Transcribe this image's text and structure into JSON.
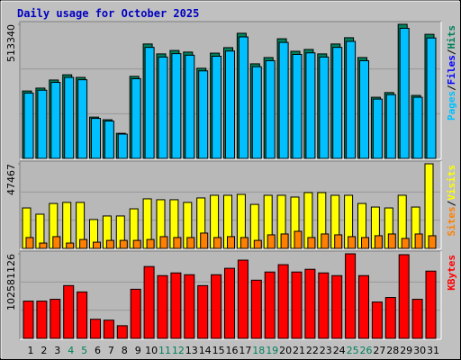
{
  "chart_data": [
    {
      "type": "bar",
      "title": "Daily usage for October 2025",
      "ylim": [
        0,
        513340
      ],
      "yticks": [
        513340
      ],
      "legend": [
        {
          "name": "Pages",
          "color": "#00c0ff"
        },
        {
          "name": "Files",
          "color": "#0000ff"
        },
        {
          "name": "Hits",
          "color": "#00805c"
        }
      ],
      "legend_separator": "/",
      "series": [
        {
          "color": "#00805c",
          "values": [
            258000,
            269000,
            300000,
            320000,
            310000,
            158000,
            148000,
            96000,
            314000,
            438000,
            400000,
            413000,
            407000,
            345000,
            403000,
            424000,
            479000,
            362000,
            386000,
            458000,
            410000,
            417000,
            400000,
            438000,
            462000,
            386000,
            234000,
            252000,
            513340,
            241000,
            475000
          ]
        },
        {
          "color": "#00c0ff",
          "values": [
            250000,
            261000,
            291000,
            310000,
            301000,
            153000,
            143000,
            93000,
            305000,
            425000,
            388000,
            401000,
            395000,
            335000,
            391000,
            411000,
            465000,
            351000,
            374000,
            444000,
            398000,
            404000,
            388000,
            425000,
            448000,
            374000,
            227000,
            244000,
            498000,
            234000,
            461000
          ]
        }
      ]
    },
    {
      "type": "bar",
      "ylim": [
        0,
        47467
      ],
      "yticks": [
        47467
      ],
      "legend": [
        {
          "name": "Sites",
          "color": "#ff8000"
        },
        {
          "name": "Visits",
          "color": "#ffff00"
        }
      ],
      "legend_separator": "/",
      "series": [
        {
          "color": "#ffff00",
          "values": [
            22700,
            19200,
            25200,
            25800,
            25800,
            16200,
            18200,
            18200,
            22200,
            27800,
            27300,
            27300,
            25800,
            28300,
            29800,
            29800,
            30300,
            24700,
            29800,
            29800,
            28800,
            31300,
            31300,
            29800,
            29800,
            25200,
            23200,
            22700,
            29800,
            23200,
            47467
          ]
        },
        {
          "color": "#ff8000",
          "values": [
            6100,
            3000,
            6600,
            3000,
            5000,
            3500,
            4500,
            4500,
            4500,
            5000,
            6600,
            6100,
            6100,
            8600,
            6100,
            6600,
            6100,
            4500,
            7600,
            8100,
            9600,
            6100,
            8100,
            7600,
            6600,
            6100,
            7100,
            8100,
            5600,
            8100,
            7100
          ]
        }
      ]
    },
    {
      "type": "bar",
      "ylim": [
        0,
        102581126
      ],
      "yticks": [
        102581126
      ],
      "legend": [
        {
          "name": "KBytes",
          "color": "#ff0000"
        }
      ],
      "series": [
        {
          "color": "#ff0000",
          "values": [
            45200000,
            45200000,
            47400000,
            64000000,
            56300000,
            23200000,
            22100000,
            15400000,
            59600000,
            87100000,
            76100000,
            79400000,
            77200000,
            64000000,
            77200000,
            85000000,
            94900000,
            70600000,
            80500000,
            89400000,
            80500000,
            83800000,
            79400000,
            76100000,
            102581126,
            76100000,
            44100000,
            49600000,
            101500000,
            47400000,
            81600000
          ]
        }
      ],
      "categories": [
        "1",
        "2",
        "3",
        "4",
        "5",
        "6",
        "7",
        "8",
        "9",
        "10",
        "11",
        "12",
        "13",
        "14",
        "15",
        "16",
        "17",
        "18",
        "19",
        "20",
        "21",
        "22",
        "23",
        "24",
        "25",
        "26",
        "27",
        "28",
        "29",
        "30",
        "31"
      ],
      "category_colors": [
        "#000000",
        "#000000",
        "#000000",
        "#00805c",
        "#00805c",
        "#000000",
        "#000000",
        "#000000",
        "#000000",
        "#000000",
        "#00805c",
        "#00805c",
        "#000000",
        "#000000",
        "#000000",
        "#000000",
        "#000000",
        "#00805c",
        "#00805c",
        "#000000",
        "#000000",
        "#000000",
        "#000000",
        "#000000",
        "#00805c",
        "#00805c",
        "#000000",
        "#000000",
        "#000000",
        "#000000",
        "#000000"
      ]
    }
  ]
}
